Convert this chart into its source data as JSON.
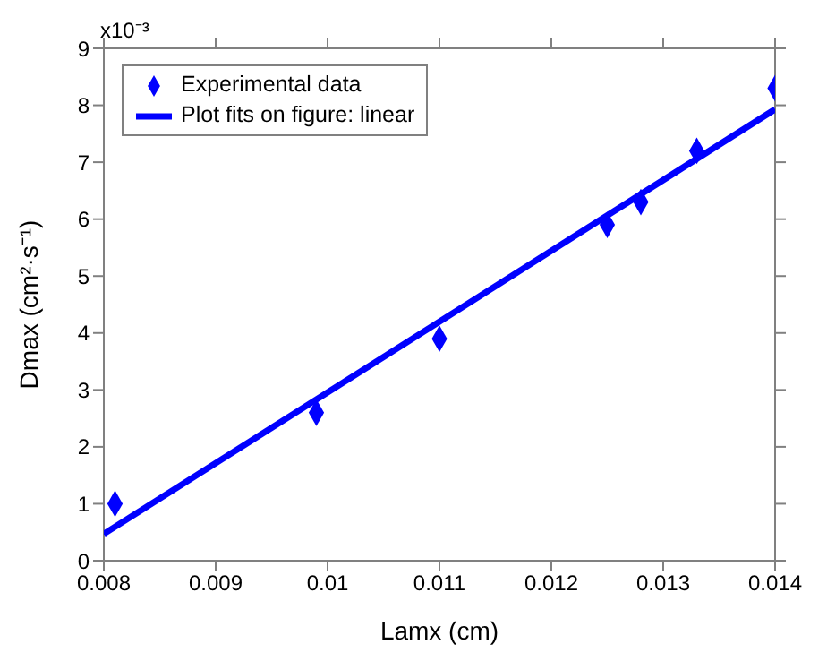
{
  "chart_data": {
    "type": "scatter",
    "xlabel": "Lamx (cm)",
    "ylabel": "Dmax (cm²·s⁻¹)",
    "annotations": [
      "x10⁻³"
    ],
    "xlim": [
      0.008,
      0.014
    ],
    "xticks": [
      0.008,
      0.009,
      0.01,
      0.011,
      0.012,
      0.013,
      0.014
    ],
    "ylim": [
      0,
      9
    ],
    "yticks": [
      0,
      1,
      2,
      3,
      4,
      5,
      6,
      7,
      8,
      9
    ],
    "legend": "top left",
    "series": [
      {
        "name": "Experimental data",
        "marker": "diamond",
        "color": "#0000ff",
        "x": [
          0.0081,
          0.0099,
          0.011,
          0.0125,
          0.0128,
          0.0133,
          0.014
        ],
        "values": [
          1.0,
          2.6,
          3.9,
          5.9,
          6.3,
          7.2,
          8.3
        ]
      },
      {
        "name": "Plot fits on figure: linear",
        "type": "line",
        "marker": "none",
        "line_style": "solid",
        "color": "#0000ff",
        "x": [
          0.008,
          0.014
        ],
        "values": [
          0.47,
          7.93
        ]
      }
    ]
  }
}
